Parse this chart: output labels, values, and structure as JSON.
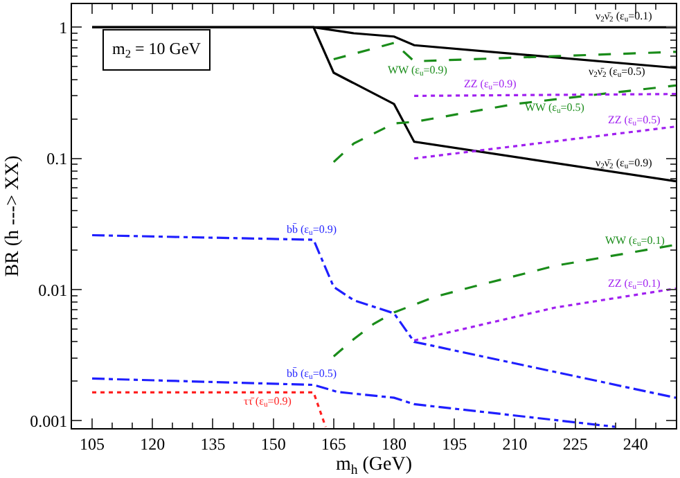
{
  "chart_data": {
    "type": "line",
    "xlabel": "m$_{h}$ (GeV)",
    "ylabel": "BR (h ---> XX)",
    "xlim": [
      100,
      250
    ],
    "xticks": [
      105,
      120,
      135,
      150,
      165,
      180,
      195,
      210,
      225,
      240
    ],
    "ylim": [
      0.00088,
      1.5
    ],
    "yticks": [
      0.001,
      0.01,
      0.1,
      1
    ],
    "log": "y",
    "legend": false,
    "marker": "none",
    "series": [
      {
        "name": "ν$_{2}$ν̄$_{2}$ (ε$_{u}$=0.1)",
        "color": "#000000",
        "line_style": "solid",
        "x": [
          105,
          250
        ],
        "values": [
          1,
          1
        ]
      },
      {
        "name": "ν$_{2}$ν̄$_{2}$ (ε$_{u}$=0.5)",
        "color": "#000000",
        "line_style": "solid",
        "x": [
          105,
          160,
          170,
          180,
          185,
          250
        ],
        "values": [
          1,
          1,
          0.9,
          0.85,
          0.73,
          0.49
        ]
      },
      {
        "name": "ν$_{2}$ν̄$_{2}$ (ε$_{u}$=0.9)",
        "color": "#000000",
        "line_style": "solid",
        "x": [
          105,
          160,
          165,
          180,
          185,
          250
        ],
        "values": [
          1,
          1,
          0.45,
          0.26,
          0.134,
          0.067
        ]
      },
      {
        "name": "WW (ε$_{u}$=0.9)",
        "color": "#1a8c1a",
        "line_style": "dashed",
        "x": [
          165,
          180,
          185,
          250
        ],
        "values": [
          0.57,
          0.76,
          0.55,
          0.65
        ]
      },
      {
        "name": "WW (ε$_{u}$=0.5)",
        "color": "#1a8c1a",
        "line_style": "dashed",
        "x": [
          165,
          170,
          180,
          185,
          210,
          250
        ],
        "values": [
          0.094,
          0.13,
          0.185,
          0.19,
          0.26,
          0.36
        ]
      },
      {
        "name": "ZZ (ε$_{u}$=0.9)",
        "color": "#a020f0",
        "line_style": "dotted",
        "x": [
          185,
          250
        ],
        "values": [
          0.3,
          0.31
        ]
      },
      {
        "name": "ZZ (ε$_{u}$=0.5)",
        "color": "#a020f0",
        "line_style": "dotted",
        "x": [
          185,
          250
        ],
        "values": [
          0.1,
          0.175
        ]
      },
      {
        "name": "WW (ε$_{u}$=0.1)",
        "color": "#1a8c1a",
        "line_style": "dashed",
        "x": [
          165,
          170,
          175,
          180,
          190,
          200,
          220,
          250
        ],
        "values": [
          0.0031,
          0.0042,
          0.0055,
          0.0067,
          0.0088,
          0.0106,
          0.0152,
          0.022
        ]
      },
      {
        "name": "ZZ (ε$_{u}$=0.1)",
        "color": "#a020f0",
        "line_style": "dotted",
        "x": [
          185,
          220,
          250
        ],
        "values": [
          0.0041,
          0.0073,
          0.0102
        ]
      },
      {
        "name": "bb̄ (ε$_{u}$=0.9)",
        "color": "#1f1fff",
        "line_style": "dashdot",
        "x": [
          105,
          160,
          165,
          170,
          180,
          185,
          250
        ],
        "values": [
          0.026,
          0.024,
          0.0105,
          0.0083,
          0.0066,
          0.004,
          0.0015
        ]
      },
      {
        "name": "bb̄ (ε$_{u}$=0.5)",
        "color": "#1f1fff",
        "line_style": "dashdot",
        "x": [
          105,
          160,
          166,
          180,
          185,
          235
        ],
        "values": [
          0.0021,
          0.00188,
          0.00166,
          0.0015,
          0.00134,
          0.0009
        ]
      },
      {
        "name": "ττ̄ (ε$_{u}$=0.9)",
        "color": "#ff2020",
        "line_style": "dotted",
        "x": [
          105,
          160,
          163
        ],
        "values": [
          0.00165,
          0.00165,
          0.0009
        ]
      }
    ],
    "annotations": [
      "m$_{2}$ = 10 GeV"
    ]
  }
}
